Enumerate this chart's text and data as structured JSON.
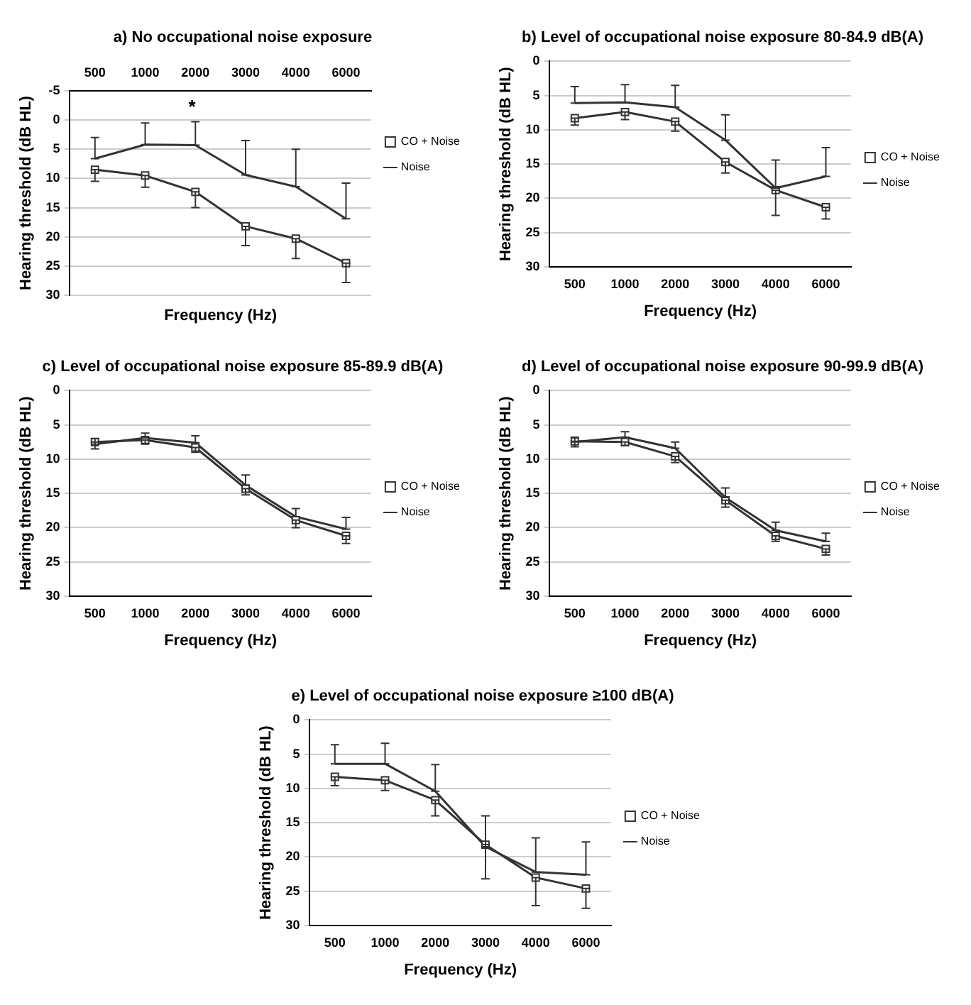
{
  "chart_data": [
    {
      "type": "line",
      "title": "a) No occupational noise exposure",
      "xlabel": "Frequency (Hz)",
      "ylabel": "Hearing threshold (dB HL)",
      "categories": [
        "500",
        "1000",
        "2000",
        "3000",
        "4000",
        "6000"
      ],
      "ylim": [
        30,
        -5
      ],
      "yticks": [
        -5,
        0,
        5,
        10,
        15,
        20,
        25,
        30
      ],
      "grid": "y",
      "legend": "right",
      "annotations": [
        "*"
      ],
      "series": [
        {
          "name": "CO + Noise",
          "color": "#333333",
          "marker": "square",
          "values": [
            8.5,
            9.5,
            12.3,
            18.2,
            20.3,
            24.5
          ],
          "errors": [
            [
              8.5,
              10.5
            ],
            [
              9.5,
              11.5
            ],
            [
              12.3,
              15
            ],
            [
              18.2,
              21.5
            ],
            [
              20.3,
              23.7
            ],
            [
              24.5,
              27.8
            ]
          ]
        },
        {
          "name": "Noise",
          "color": "#333333",
          "marker": "none",
          "values": [
            6.6,
            4.2,
            4.3,
            9.4,
            11.4,
            16.9
          ],
          "errors": [
            [
              3,
              6.6
            ],
            [
              0.5,
              4.2
            ],
            [
              0.3,
              4.3
            ],
            [
              3.5,
              9.4
            ],
            [
              5,
              11.4
            ],
            [
              10.8,
              16.9
            ]
          ]
        }
      ]
    },
    {
      "type": "line",
      "title": "b) Level of occupational noise exposure 80-84.9 dB(A)",
      "xlabel": "Frequency (Hz)",
      "ylabel": "Hearing threshold (dB HL)",
      "categories": [
        "500",
        "1000",
        "2000",
        "3000",
        "4000",
        "6000"
      ],
      "ylim": [
        30,
        0
      ],
      "yticks": [
        0,
        5,
        10,
        15,
        20,
        25,
        30
      ],
      "grid": "y",
      "legend": "right",
      "series": [
        {
          "name": "CO + Noise",
          "color": "#333333",
          "marker": "square",
          "values": [
            8.3,
            7.4,
            8.8,
            14.7,
            18.8,
            21.3
          ],
          "errors": [
            [
              8.3,
              9.3
            ],
            [
              7.4,
              8.5
            ],
            [
              8.8,
              10.2
            ],
            [
              14.7,
              16.3
            ],
            [
              18.8,
              22.5
            ],
            [
              21.3,
              23
            ]
          ]
        },
        {
          "name": "Noise",
          "color": "#333333",
          "marker": "none",
          "values": [
            6.1,
            6.0,
            6.7,
            11.5,
            18.5,
            16.8
          ],
          "errors": [
            [
              3.7,
              6.1
            ],
            [
              3.4,
              6.0
            ],
            [
              3.5,
              6.7
            ],
            [
              7.8,
              11.5
            ],
            [
              14.4,
              18.5
            ],
            [
              12.6,
              16.8
            ]
          ]
        }
      ]
    },
    {
      "type": "line",
      "title": "c) Level of occupational noise exposure 85-89.9 dB(A)",
      "xlabel": "Frequency (Hz)",
      "ylabel": "Hearing threshold (dB HL)",
      "categories": [
        "500",
        "1000",
        "2000",
        "3000",
        "4000",
        "6000"
      ],
      "ylim": [
        30,
        0
      ],
      "yticks": [
        0,
        5,
        10,
        15,
        20,
        25,
        30
      ],
      "grid": "y",
      "legend": "right",
      "series": [
        {
          "name": "CO + Noise",
          "color": "#333333",
          "marker": "square",
          "values": [
            7.5,
            7.2,
            8.3,
            14.3,
            18.9,
            21.2
          ],
          "errors": [
            [
              7.5,
              8.5
            ],
            [
              7.2,
              7.8
            ],
            [
              8.3,
              9
            ],
            [
              14.3,
              15.2
            ],
            [
              18.9,
              20
            ],
            [
              21.2,
              22.3
            ]
          ]
        },
        {
          "name": "Noise",
          "color": "#333333",
          "marker": "none",
          "values": [
            7.8,
            6.9,
            7.6,
            13.8,
            18.4,
            20.2
          ],
          "errors": [
            [
              7.0,
              7.8
            ],
            [
              6.2,
              6.9
            ],
            [
              6.6,
              7.6
            ],
            [
              12.3,
              13.8
            ],
            [
              17.2,
              18.4
            ],
            [
              18.5,
              20.2
            ]
          ]
        }
      ]
    },
    {
      "type": "line",
      "title": "d) Level of occupational noise exposure 90-99.9 dB(A)",
      "xlabel": "Frequency (Hz)",
      "ylabel": "Hearing threshold (dB HL)",
      "categories": [
        "500",
        "1000",
        "2000",
        "3000",
        "4000",
        "6000"
      ],
      "ylim": [
        30,
        0
      ],
      "yticks": [
        0,
        5,
        10,
        15,
        20,
        25,
        30
      ],
      "grid": "y",
      "legend": "right",
      "series": [
        {
          "name": "CO + Noise",
          "color": "#333333",
          "marker": "square",
          "values": [
            7.4,
            7.5,
            9.6,
            16.0,
            21.2,
            23.1
          ],
          "errors": [
            [
              7.4,
              8.2
            ],
            [
              7.5,
              8.0
            ],
            [
              9.6,
              10.5
            ],
            [
              16.0,
              17.0
            ],
            [
              21.2,
              22.0
            ],
            [
              23.1,
              24.0
            ]
          ]
        },
        {
          "name": "Noise",
          "color": "#333333",
          "marker": "none",
          "values": [
            7.5,
            6.8,
            8.4,
            15.6,
            20.4,
            22.0
          ],
          "errors": [
            [
              6.8,
              7.5
            ],
            [
              6.0,
              6.8
            ],
            [
              7.5,
              8.4
            ],
            [
              14.2,
              15.6
            ],
            [
              19.2,
              20.4
            ],
            [
              20.8,
              22.0
            ]
          ]
        }
      ]
    },
    {
      "type": "line",
      "title": "e) Level of occupational noise exposure ≥100 dB(A)",
      "xlabel": "Frequency (Hz)",
      "ylabel": "Hearing threshold (dB HL)",
      "categories": [
        "500",
        "1000",
        "2000",
        "3000",
        "4000",
        "6000"
      ],
      "ylim": [
        30,
        0
      ],
      "yticks": [
        0,
        5,
        10,
        15,
        20,
        25,
        30
      ],
      "grid": "y",
      "legend": "right",
      "series": [
        {
          "name": "CO + Noise",
          "color": "#333333",
          "marker": "square",
          "values": [
            8.3,
            8.8,
            11.7,
            18.2,
            23.0,
            24.6
          ],
          "errors": [
            [
              8.3,
              9.6
            ],
            [
              8.8,
              10.3
            ],
            [
              11.7,
              14.0
            ],
            [
              18.2,
              23.2
            ],
            [
              23.0,
              27.1
            ],
            [
              24.6,
              27.5
            ]
          ]
        },
        {
          "name": "Noise",
          "color": "#333333",
          "marker": "none",
          "values": [
            6.4,
            6.4,
            10.4,
            18.5,
            22.2,
            22.6
          ],
          "errors": [
            [
              3.6,
              6.4
            ],
            [
              3.4,
              6.4
            ],
            [
              6.5,
              10.4
            ],
            [
              14.0,
              18.5
            ],
            [
              17.2,
              22.2
            ],
            [
              17.8,
              22.6
            ]
          ]
        }
      ]
    }
  ]
}
